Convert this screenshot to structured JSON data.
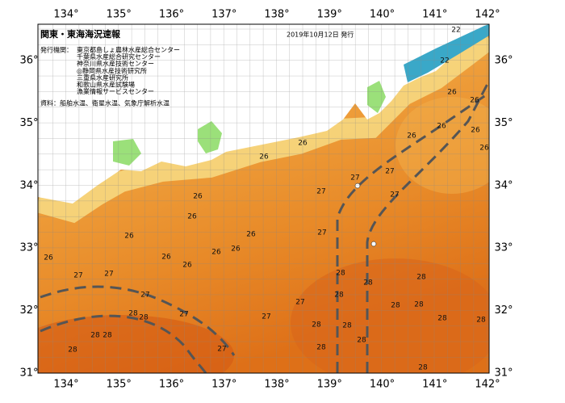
{
  "header": {
    "title": "関東・東海海況速報",
    "date": "2019年10月12日 発行",
    "issuer_label": "発行機関：",
    "issuers": [
      "東京都島しょ農林水産総合センター",
      "千葉県水産総合研究センター",
      "神奈川県水産技術センター",
      "◎静岡県水産技術研究所",
      "三重県水産研究所",
      "和歌山県水産試験場",
      "漁業情報サービスセンター"
    ],
    "source": "資料：船舶水温、衛星水温、気象庁解析水温"
  },
  "longitude_labels": [
    "134°",
    "135°",
    "136°",
    "137°",
    "138°",
    "139°",
    "140°",
    "141°",
    "142°"
  ],
  "latitude_labels": [
    "36°",
    "35°",
    "34°",
    "33°",
    "32°",
    "31°"
  ],
  "temperature_labels": [
    22,
    22,
    26,
    26,
    26,
    26,
    26,
    26,
    26,
    26,
    27,
    27,
    27,
    27,
    26,
    26,
    27,
    26,
    26,
    26,
    26,
    26,
    26,
    26,
    27,
    27,
    28,
    28,
    28,
    28,
    27,
    27,
    28,
    28,
    28,
    28,
    27,
    27,
    28,
    28,
    28,
    28,
    28,
    28,
    28,
    28,
    27,
    28,
    28
  ]
}
